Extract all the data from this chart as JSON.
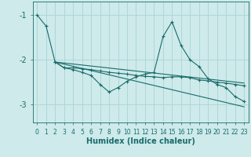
{
  "xlabel": "Humidex (Indice chaleur)",
  "xlim": [
    -0.5,
    23.5
  ],
  "ylim": [
    -3.4,
    -0.7
  ],
  "yticks": [
    -3,
    -2,
    -1
  ],
  "xticks": [
    0,
    1,
    2,
    3,
    4,
    5,
    6,
    7,
    8,
    9,
    10,
    11,
    12,
    13,
    14,
    15,
    16,
    17,
    18,
    19,
    20,
    21,
    22,
    23
  ],
  "bg_color": "#ceeaea",
  "grid_color": "#aad4d4",
  "line_color": "#1a6b6b",
  "lines": [
    {
      "x": [
        0,
        1,
        2,
        3,
        4,
        5,
        6,
        7,
        8,
        9,
        10,
        11,
        12,
        13,
        14,
        15,
        16,
        17,
        18,
        19,
        20,
        21,
        22,
        23
      ],
      "y": [
        -1.0,
        -1.25,
        -2.05,
        -2.18,
        -2.18,
        -2.2,
        -2.22,
        -2.25,
        -2.28,
        -2.3,
        -2.32,
        -2.35,
        -2.37,
        -2.38,
        -2.4,
        -2.38,
        -2.38,
        -2.4,
        -2.45,
        -2.47,
        -2.5,
        -2.52,
        -2.55,
        -2.58
      ],
      "marker": true
    },
    {
      "x": [
        2,
        3,
        4,
        5,
        6,
        7,
        8,
        9,
        10,
        11,
        12,
        13,
        14,
        15,
        16,
        17,
        18,
        19,
        20,
        21,
        22,
        23
      ],
      "y": [
        -2.05,
        -2.18,
        -2.22,
        -2.28,
        -2.35,
        -2.55,
        -2.72,
        -2.62,
        -2.48,
        -2.38,
        -2.32,
        -2.28,
        -1.48,
        -1.15,
        -1.68,
        -2.0,
        -2.15,
        -2.42,
        -2.55,
        -2.62,
        -2.82,
        -2.93
      ],
      "marker": true
    },
    {
      "x": [
        2,
        23
      ],
      "y": [
        -2.05,
        -2.52
      ],
      "marker": false
    },
    {
      "x": [
        2,
        23
      ],
      "y": [
        -2.05,
        -3.05
      ],
      "marker": false
    }
  ]
}
